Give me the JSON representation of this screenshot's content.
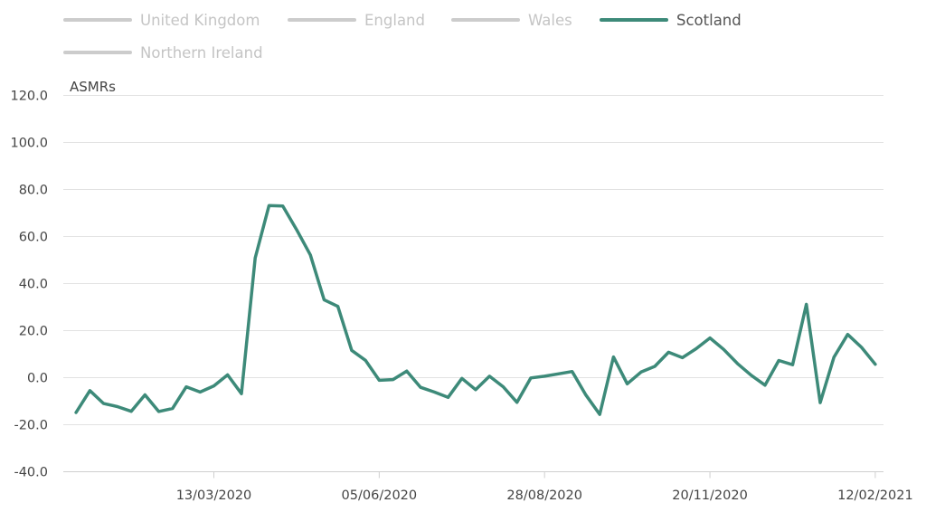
{
  "legend": {
    "items": [
      {
        "label": "United Kingdom",
        "active": false
      },
      {
        "label": "England",
        "active": false
      },
      {
        "label": "Wales",
        "active": false
      },
      {
        "label": "Scotland",
        "active": true
      },
      {
        "label": "Northern Ireland",
        "active": false
      }
    ]
  },
  "colors": {
    "active_series": "#3d8a79",
    "inactive_legend": "#cccccc",
    "inactive_text": "#c4c4c4",
    "active_text": "#555555",
    "grid": "#e2e2e2",
    "axis": "#cfcfcf"
  },
  "chart_data": {
    "type": "line",
    "title": "",
    "ylabel": "ASMRs",
    "xlabel": "",
    "ylim": [
      -40,
      120
    ],
    "yticks": [
      "120.0",
      "100.0",
      "80.0",
      "60.0",
      "40.0",
      "20.0",
      "0.0",
      "-20.0",
      "-40.0"
    ],
    "xticks": [
      "13/03/2020",
      "05/06/2020",
      "28/08/2020",
      "20/11/2020",
      "12/02/2021"
    ],
    "x_start": "03/01/2020",
    "x_end": "12/02/2021",
    "grid": true,
    "legend_position": "top-left",
    "series": [
      {
        "name": "Scotland",
        "x": [
          "03/01/2020",
          "10/01/2020",
          "17/01/2020",
          "24/01/2020",
          "31/01/2020",
          "07/02/2020",
          "14/02/2020",
          "21/02/2020",
          "28/02/2020",
          "06/03/2020",
          "13/03/2020",
          "20/03/2020",
          "27/03/2020",
          "03/04/2020",
          "10/04/2020",
          "17/04/2020",
          "24/04/2020",
          "01/05/2020",
          "08/05/2020",
          "15/05/2020",
          "22/05/2020",
          "29/05/2020",
          "05/06/2020",
          "12/06/2020",
          "19/06/2020",
          "26/06/2020",
          "03/07/2020",
          "10/07/2020",
          "17/07/2020",
          "24/07/2020",
          "31/07/2020",
          "07/08/2020",
          "14/08/2020",
          "21/08/2020",
          "28/08/2020",
          "04/09/2020",
          "11/09/2020",
          "18/09/2020",
          "25/09/2020",
          "02/10/2020",
          "09/10/2020",
          "16/10/2020",
          "23/10/2020",
          "30/10/2020",
          "06/11/2020",
          "13/11/2020",
          "20/11/2020",
          "27/11/2020",
          "04/12/2020",
          "11/12/2020",
          "18/12/2020",
          "25/12/2020",
          "01/01/2021",
          "08/01/2021",
          "15/01/2021",
          "22/01/2021",
          "29/01/2021",
          "05/02/2021",
          "12/02/2021"
        ],
        "values": [
          -14.8,
          -5.5,
          -11.0,
          -12.3,
          -14.3,
          -7.3,
          -14.4,
          -13.1,
          -3.9,
          -6.1,
          -3.5,
          1.2,
          -6.8,
          50.9,
          73.2,
          73.0,
          63.0,
          52.2,
          33.1,
          30.3,
          11.6,
          7.4,
          -1.1,
          -0.8,
          2.8,
          -4.1,
          -6.1,
          -8.4,
          -0.3,
          -5.1,
          0.6,
          -3.9,
          -10.5,
          -0.1,
          0.6,
          1.6,
          2.6,
          -7.4,
          -15.6,
          8.8,
          -2.6,
          2.4,
          4.8,
          10.8,
          8.5,
          12.3,
          16.9,
          12.0,
          6.0,
          1.0,
          -3.2,
          7.3,
          5.5,
          31.2,
          -10.6,
          8.7,
          18.4,
          12.9,
          5.7
        ]
      }
    ]
  }
}
